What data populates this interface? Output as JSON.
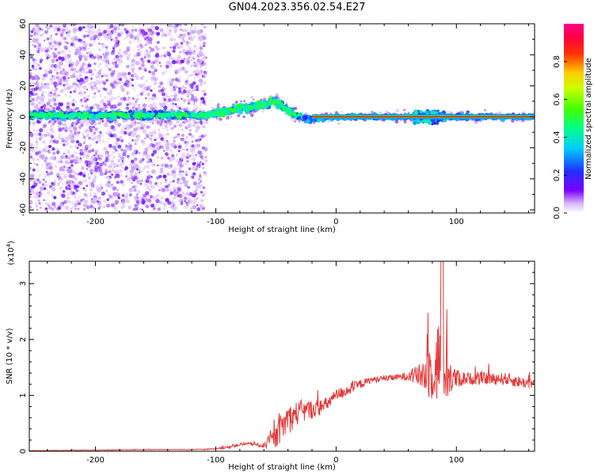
{
  "title": "GN04.2023.356.02.54.E27",
  "chart_data": [
    {
      "type": "heatmap",
      "xlabel": "Height of straight line (km)",
      "ylabel": "Frequency (Hz)",
      "xlim": [
        -255,
        165
      ],
      "ylim": [
        -62,
        60
      ],
      "x_ticks": [
        -200,
        -100,
        0,
        100
      ],
      "x_tick_labels": [
        "-200",
        "-100",
        "0",
        "100"
      ],
      "y_ticks": [
        60,
        40,
        20,
        0,
        -20,
        -40,
        -60
      ],
      "y_tick_labels": [
        "60",
        "40",
        "20",
        "0",
        "-20",
        "-40",
        "-60"
      ],
      "colorbar": {
        "label": "Normalized spectral amplitude",
        "range": [
          0,
          1
        ],
        "ticks": [
          0.0,
          0.2,
          0.4,
          0.6,
          0.8
        ],
        "tick_labels": [
          "0.0",
          "0.2",
          "0.4",
          "0.6",
          "0.8"
        ],
        "colormap": "rainbow (white-violet-blue-cyan-green-yellow-red-magenta)"
      },
      "features": [
        {
          "description": "broadband noise",
          "x_range": [
            -255,
            -108
          ],
          "frequency_range": [
            -60,
            60
          ],
          "amplitude": "low"
        },
        {
          "description": "signal band",
          "x": [
            -255,
            -150,
            -110,
            -80,
            -60,
            -50,
            -40,
            -30,
            -20,
            0,
            65,
            80,
            90,
            165
          ],
          "frequency_center": [
            1,
            1,
            1,
            5,
            8,
            10,
            4,
            0,
            -2,
            0,
            0,
            0,
            0,
            0
          ]
        },
        {
          "description": "tonal line",
          "x_range": [
            -20,
            165
          ],
          "frequency": 0,
          "amplitude": "high"
        },
        {
          "description": "disturbance",
          "x_range": [
            65,
            90
          ],
          "frequency_range": [
            -12,
            12
          ]
        }
      ]
    },
    {
      "type": "line",
      "xlabel": "Height of straight line (km)",
      "ylabel": "SNR (10 * v/v)",
      "y_multiplier_label": "(x10",
      "y_multiplier_exponent": "4",
      "xlim": [
        -255,
        165
      ],
      "ylim": [
        0,
        3.4
      ],
      "x_ticks": [
        -200,
        -100,
        0,
        100
      ],
      "x_tick_labels": [
        "-200",
        "-100",
        "0",
        "100"
      ],
      "y_ticks": [
        0,
        1,
        2,
        3
      ],
      "y_tick_labels": [
        "0",
        "1",
        "2",
        "3"
      ],
      "color": "#e53a3a",
      "series": [
        {
          "x": [
            -255,
            -200,
            -150,
            -120,
            -100,
            -90,
            -80,
            -70,
            -60,
            -50,
            -45,
            -40,
            -35,
            -30,
            -20,
            -10,
            0,
            10,
            20,
            30,
            40,
            50,
            60,
            70,
            75,
            80,
            85,
            88,
            90,
            95,
            100,
            110,
            120,
            130,
            140,
            150,
            165
          ],
          "values": [
            0.01,
            0.02,
            0.03,
            0.03,
            0.04,
            0.07,
            0.12,
            0.13,
            0.1,
            0.25,
            0.45,
            0.55,
            0.65,
            0.7,
            0.75,
            0.8,
            1.0,
            1.1,
            1.2,
            1.28,
            1.3,
            1.32,
            1.35,
            1.35,
            1.4,
            1.5,
            1.6,
            2.0,
            1.5,
            1.3,
            1.3,
            1.3,
            1.3,
            1.3,
            1.3,
            1.25,
            1.2
          ],
          "spread": [
            0.005,
            0.01,
            0.01,
            0.01,
            0.02,
            0.04,
            0.05,
            0.05,
            0.08,
            0.35,
            0.5,
            0.5,
            0.4,
            0.4,
            0.3,
            0.25,
            0.2,
            0.2,
            0.15,
            0.1,
            0.1,
            0.1,
            0.15,
            0.4,
            0.8,
            1.1,
            1.4,
            1.5,
            1.2,
            0.6,
            0.3,
            0.2,
            0.2,
            0.2,
            0.2,
            0.2,
            0.15
          ]
        }
      ]
    }
  ]
}
